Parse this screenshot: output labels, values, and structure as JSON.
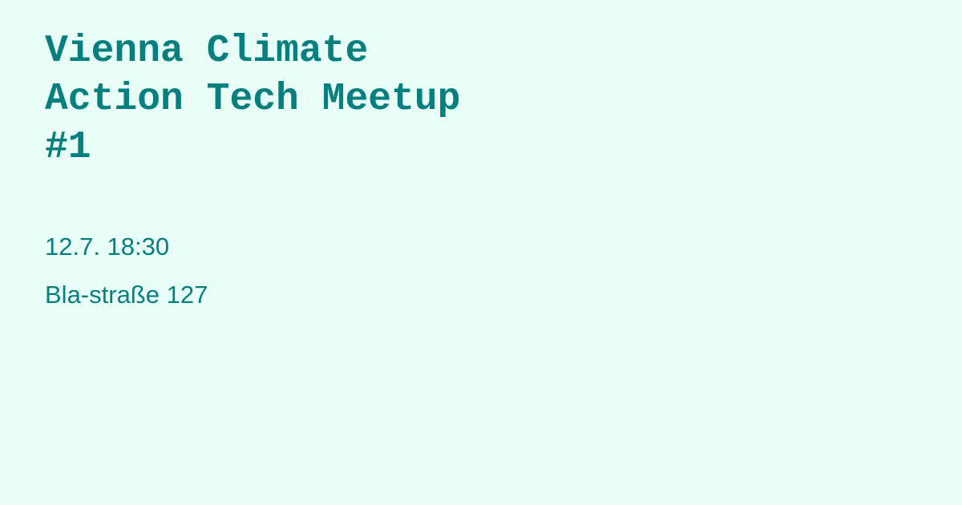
{
  "event": {
    "title": "Vienna Climate\nAction Tech Meetup\n#1",
    "date_time": "12.7. 18:30",
    "address": "Bla-straße 127"
  },
  "colors": {
    "background": "#e8fff7",
    "text": "#087f7f"
  }
}
